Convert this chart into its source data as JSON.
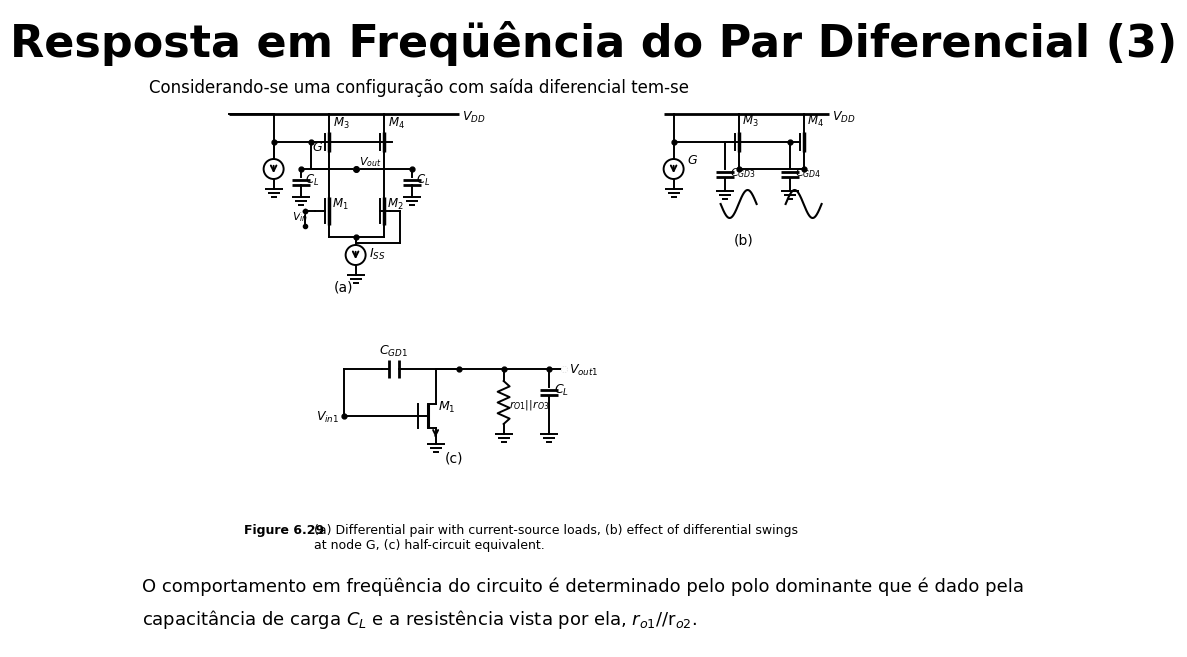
{
  "title": "Resposta em Freqüência do Par Diferencial (3)",
  "subtitle": "Considerando-se uma configuração com saída diferencial tem-se",
  "figure_caption_bold": "Figure 6.29",
  "figure_caption_text": "   (a) Differential pair with current-source loads, (b) effect of differential swings\n   at node G, (c) half-circuit equivalent.",
  "bottom_line1": "O comportamento em freqüência do circuito é determinado pelo polo dominante que é dado pela",
  "bottom_line2": "capacitância de carga $C_L$ e a resistência vista por ela, $r_{o1}$/$/$r$_{o2}$.",
  "bg_color": "#ffffff",
  "title_color": "#000000",
  "title_fontsize": 32,
  "subtitle_fontsize": 12,
  "body_fontsize": 13,
  "caption_fontsize": 9
}
